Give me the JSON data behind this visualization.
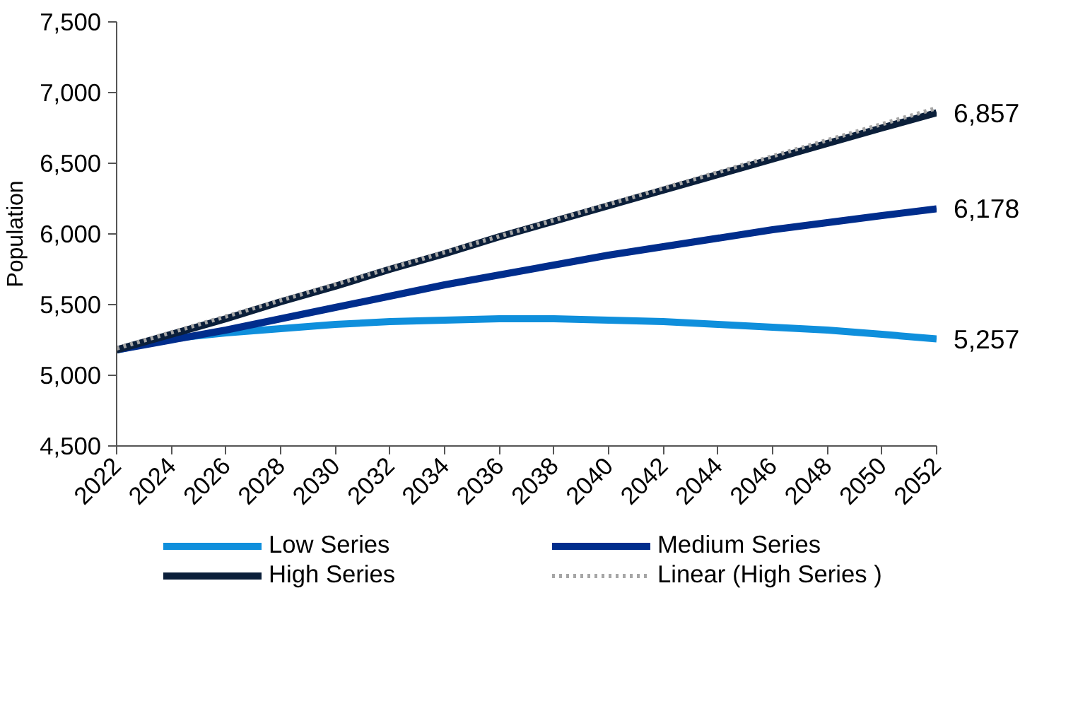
{
  "chart_data": {
    "type": "line",
    "ylabel": "Population",
    "x": [
      2022,
      2024,
      2026,
      2028,
      2030,
      2032,
      2034,
      2036,
      2038,
      2040,
      2042,
      2044,
      2046,
      2048,
      2050,
      2052
    ],
    "series": [
      {
        "name": "Low Series",
        "color": "#0f8fdc",
        "values": [
          5180,
          5260,
          5300,
          5330,
          5360,
          5380,
          5390,
          5400,
          5400,
          5390,
          5380,
          5360,
          5340,
          5320,
          5290,
          5257
        ],
        "value_labels": [
          null,
          null,
          null,
          null,
          null,
          null,
          null,
          null,
          null,
          null,
          null,
          null,
          null,
          null,
          null,
          "5,257"
        ]
      },
      {
        "name": "Medium Series",
        "color": "#002d8c",
        "values": [
          5180,
          5250,
          5320,
          5400,
          5480,
          5560,
          5640,
          5710,
          5780,
          5850,
          5910,
          5970,
          6030,
          6080,
          6130,
          6178
        ],
        "value_labels": [
          null,
          null,
          null,
          null,
          null,
          null,
          null,
          null,
          null,
          null,
          null,
          null,
          null,
          null,
          null,
          "6,178"
        ]
      },
      {
        "name": "High Series",
        "color": "#0b1f3a",
        "values": [
          5180,
          5290,
          5400,
          5520,
          5630,
          5750,
          5860,
          5980,
          6090,
          6200,
          6310,
          6420,
          6530,
          6640,
          6750,
          6857
        ],
        "value_labels": [
          null,
          null,
          null,
          null,
          null,
          null,
          null,
          null,
          null,
          null,
          null,
          null,
          null,
          null,
          null,
          "6,857"
        ]
      },
      {
        "name": "Linear (High Series )",
        "color": "#a6a6a6",
        "line_style": "dotted",
        "x": [
          2022,
          2052
        ],
        "values": [
          5190,
          6890
        ]
      }
    ],
    "ylim": [
      4500,
      7500
    ],
    "yticks": [
      {
        "value": 4500,
        "label": "4,500"
      },
      {
        "value": 5000,
        "label": "5,000"
      },
      {
        "value": 5500,
        "label": "5,500"
      },
      {
        "value": 6000,
        "label": "6,000"
      },
      {
        "value": 6500,
        "label": "6,500"
      },
      {
        "value": 7000,
        "label": "7,000"
      },
      {
        "value": 7500,
        "label": "7,500"
      }
    ],
    "xlim": [
      2022,
      2052
    ],
    "xticks": [
      2022,
      2024,
      2026,
      2028,
      2030,
      2032,
      2034,
      2036,
      2038,
      2040,
      2042,
      2044,
      2046,
      2048,
      2050,
      2052
    ],
    "grid": false,
    "legend": "bottom",
    "line_style": "solid",
    "marker": "none"
  }
}
